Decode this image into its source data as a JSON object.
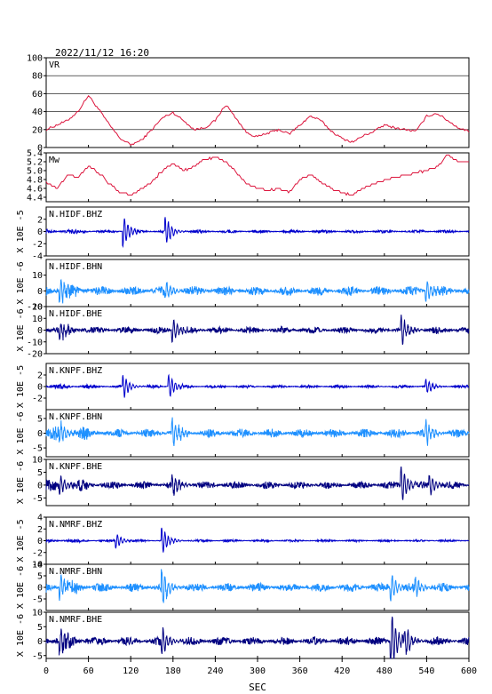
{
  "title": "2022/11/12  16:20",
  "xaxis": {
    "label": "SEC",
    "ticks": [
      "0",
      "60",
      "120",
      "180",
      "240",
      "300",
      "360",
      "420",
      "480",
      "540",
      "600"
    ],
    "min": 0,
    "max": 600
  },
  "chart_data": [
    {
      "type": "line",
      "title": "VR",
      "ylim": [
        0,
        100
      ],
      "yticks": [
        "0",
        "20",
        "40",
        "60",
        "80",
        "100"
      ],
      "grid": true,
      "color": "#dc143c",
      "x": [
        0,
        15,
        30,
        45,
        60,
        75,
        90,
        105,
        120,
        135,
        150,
        165,
        180,
        195,
        210,
        225,
        240,
        255,
        270,
        285,
        300,
        315,
        330,
        345,
        360,
        375,
        390,
        405,
        420,
        435,
        450,
        465,
        480,
        495,
        510,
        525,
        540,
        555,
        570,
        585,
        600
      ],
      "y": [
        20,
        25,
        30,
        40,
        58,
        42,
        25,
        10,
        3,
        8,
        20,
        33,
        39,
        30,
        20,
        22,
        30,
        48,
        32,
        16,
        12,
        16,
        20,
        15,
        25,
        35,
        30,
        18,
        10,
        6,
        13,
        18,
        25,
        22,
        20,
        18,
        35,
        38,
        30,
        22,
        18
      ]
    },
    {
      "type": "line",
      "title": "Mw",
      "ylim": [
        4.3,
        5.4
      ],
      "yticks": [
        "4.4",
        "4.6",
        "4.8",
        "5.0",
        "5.2",
        "5.4"
      ],
      "grid": false,
      "color": "#dc143c",
      "x": [
        0,
        15,
        30,
        45,
        60,
        75,
        90,
        105,
        120,
        135,
        150,
        165,
        180,
        195,
        210,
        225,
        240,
        255,
        270,
        285,
        300,
        315,
        330,
        345,
        360,
        375,
        390,
        405,
        420,
        435,
        450,
        465,
        480,
        495,
        510,
        525,
        540,
        555,
        570,
        585,
        600
      ],
      "y": [
        4.75,
        4.6,
        4.9,
        4.85,
        5.1,
        4.95,
        4.7,
        4.5,
        4.45,
        4.6,
        4.75,
        5.0,
        5.15,
        5.0,
        5.1,
        5.25,
        5.3,
        5.2,
        4.95,
        4.7,
        4.6,
        4.55,
        4.6,
        4.5,
        4.8,
        4.9,
        4.75,
        4.6,
        4.5,
        4.45,
        4.6,
        4.7,
        4.8,
        4.85,
        4.9,
        4.95,
        5.0,
        5.1,
        5.35,
        5.2,
        5.2
      ]
    },
    {
      "type": "line",
      "title": "N.HIDF.BHZ",
      "ylabel": "X 10E -5",
      "ylim": [
        -4,
        4
      ],
      "yticks": [
        "-4",
        "-2",
        "0",
        "2"
      ],
      "color": "#0000cd",
      "noise": 0.25,
      "events": [
        [
          110,
          2.5
        ],
        [
          170,
          -2.2
        ]
      ]
    },
    {
      "type": "line",
      "title": "N.HIDF.BHN",
      "ylabel": "X 10E -6",
      "ylim": [
        -10,
        20
      ],
      "yticks": [
        "-10",
        "0",
        "10"
      ],
      "color": "#1e90ff",
      "noise": 3,
      "events": [
        [
          20,
          8
        ],
        [
          170,
          6
        ],
        [
          540,
          7
        ]
      ]
    },
    {
      "type": "line",
      "title": "N.HIDF.BHE",
      "ylabel": "X 10E -6",
      "ylim": [
        -20,
        20
      ],
      "yticks": [
        "-20",
        "-10",
        "0",
        "10",
        "20"
      ],
      "color": "#000080",
      "noise": 3,
      "events": [
        [
          20,
          8
        ],
        [
          180,
          10
        ],
        [
          505,
          -12
        ]
      ]
    },
    {
      "type": "line",
      "title": "N.KNPF.BHZ",
      "ylabel": "X 10E -5",
      "ylim": [
        -4,
        4
      ],
      "yticks": [
        "-2",
        "0",
        "2"
      ],
      "color": "#0000cd",
      "noise": 0.25,
      "events": [
        [
          110,
          -2.0
        ],
        [
          175,
          -2.0
        ],
        [
          540,
          -1.2
        ]
      ]
    },
    {
      "type": "line",
      "title": "N.KNPF.BHN",
      "ylabel": "X 10E -6",
      "ylim": [
        -8,
        8
      ],
      "yticks": [
        "-5",
        "0",
        "5"
      ],
      "color": "#1e90ff",
      "noise": 1.5,
      "events": [
        [
          20,
          4
        ],
        [
          180,
          -5
        ],
        [
          540,
          -4
        ]
      ]
    },
    {
      "type": "line",
      "title": "N.KNPF.BHE",
      "ylabel": "X 10E -6",
      "ylim": [
        -8,
        10
      ],
      "yticks": [
        "-5",
        "0",
        "5",
        "10"
      ],
      "color": "#000080",
      "noise": 1.5,
      "events": [
        [
          20,
          4
        ],
        [
          180,
          -4
        ],
        [
          505,
          -7
        ],
        [
          545,
          -4
        ]
      ]
    },
    {
      "type": "line",
      "title": "N.NMRF.BHZ",
      "ylabel": "X 10E -5",
      "ylim": [
        -4,
        4
      ],
      "yticks": [
        "-4",
        "-2",
        "0",
        "2",
        "4"
      ],
      "color": "#0000cd",
      "noise": 0.2,
      "events": [
        [
          100,
          1.2
        ],
        [
          165,
          -2.2
        ]
      ]
    },
    {
      "type": "line",
      "title": "N.NMRF.BHN",
      "ylabel": "X 10E -6",
      "ylim": [
        -10,
        10
      ],
      "yticks": [
        "-5",
        "0",
        "5",
        "10"
      ],
      "color": "#1e90ff",
      "noise": 2,
      "events": [
        [
          20,
          5
        ],
        [
          165,
          -8
        ],
        [
          490,
          6
        ],
        [
          525,
          -4
        ]
      ]
    },
    {
      "type": "line",
      "title": "N.NMRF.BHE",
      "ylabel": "X 10E -6",
      "ylim": [
        -6,
        10
      ],
      "yticks": [
        "-5",
        "0",
        "5",
        "10"
      ],
      "color": "#000080",
      "noise": 1.5,
      "events": [
        [
          20,
          4
        ],
        [
          165,
          5
        ],
        [
          490,
          10
        ],
        [
          510,
          -5
        ]
      ]
    }
  ]
}
